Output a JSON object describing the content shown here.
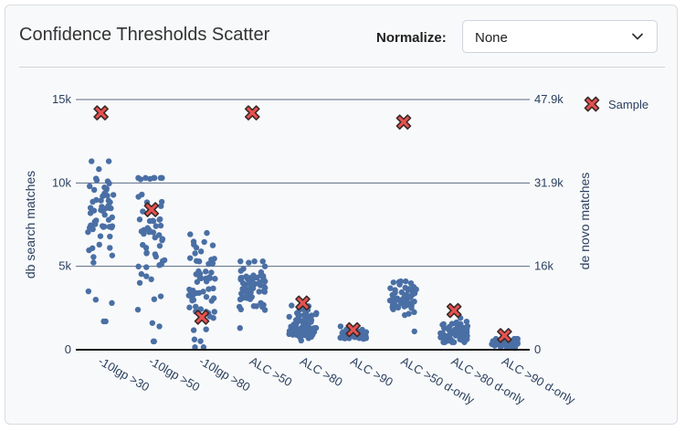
{
  "card": {
    "title": "Confidence Thresholds Scatter",
    "normalize_label": "Normalize:",
    "normalize_value": "None",
    "chevron_icon": "chevron-down-icon"
  },
  "chart_data": {
    "type": "scatter",
    "title": "",
    "categories": [
      "-10lgp >30",
      "-10lgp >50",
      "-10lgp >80",
      "ALC >50",
      "ALC >80",
      "ALC >90",
      "ALC >50 d-only",
      "ALC >80 d-only",
      "ALC >90 d-only"
    ],
    "ylabel": "db search matches",
    "y2label": "de novo matches",
    "yticks": [
      {
        "value": 0,
        "label": "0"
      },
      {
        "value": 5000,
        "label": "5k"
      },
      {
        "value": 10000,
        "label": "10k"
      },
      {
        "value": 15000,
        "label": "15k"
      }
    ],
    "y2ticks": [
      {
        "value": 0,
        "label": "0"
      },
      {
        "value": 5000,
        "label": "16k"
      },
      {
        "value": 10000,
        "label": "31.9k"
      },
      {
        "value": 15000,
        "label": "47.9k"
      }
    ],
    "ylim": [
      0,
      15000
    ],
    "grid": true,
    "legend_position": "top-right",
    "point_color": "#4a6fa5",
    "sample_color": "#e8524f",
    "sample_series": {
      "name": "Sample",
      "values": [
        14200,
        8400,
        1950,
        14200,
        2800,
        1200,
        13650,
        2350,
        850
      ]
    },
    "distributions": [
      {
        "count": 62,
        "lo": 1700,
        "hi": 11300,
        "center": 8000,
        "spread": 1700,
        "low_outliers": [
          1700,
          2800,
          3000
        ]
      },
      {
        "count": 58,
        "lo": 500,
        "hi": 10300,
        "center": 7200,
        "spread": 1800,
        "low_outliers": [
          500,
          1400,
          1600,
          2400,
          3200
        ]
      },
      {
        "count": 62,
        "lo": 150,
        "hi": 7000,
        "center": 3800,
        "spread": 1500,
        "low_outliers": []
      },
      {
        "count": 62,
        "lo": 1300,
        "hi": 5300,
        "center": 3800,
        "spread": 800,
        "low_outliers": []
      },
      {
        "count": 70,
        "lo": 550,
        "hi": 2650,
        "center": 1500,
        "spread": 450,
        "low_outliers": []
      },
      {
        "count": 45,
        "lo": 650,
        "hi": 1400,
        "center": 900,
        "spread": 180,
        "low_outliers": []
      },
      {
        "count": 62,
        "lo": 1100,
        "hi": 4100,
        "center": 3100,
        "spread": 550,
        "low_outliers": []
      },
      {
        "count": 70,
        "lo": 450,
        "hi": 1900,
        "center": 950,
        "spread": 330,
        "low_outliers": []
      },
      {
        "count": 50,
        "lo": 100,
        "hi": 650,
        "center": 350,
        "spread": 140,
        "low_outliers": []
      }
    ]
  }
}
